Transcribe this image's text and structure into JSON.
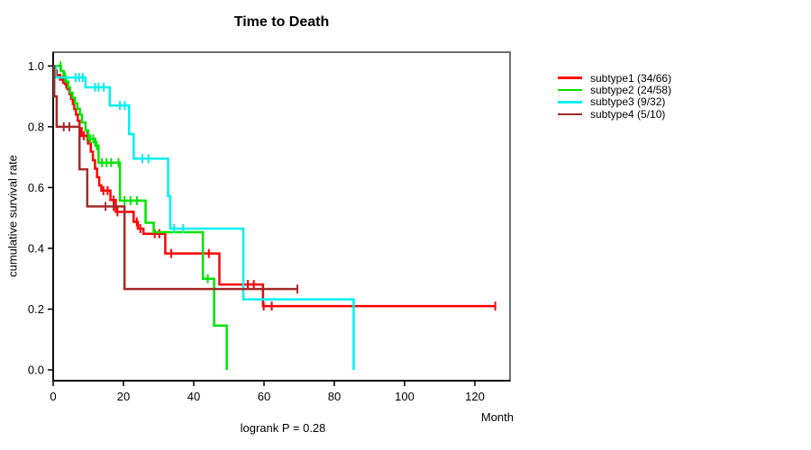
{
  "chart_data": {
    "type": "line",
    "subtype": "kaplan-meier-step-survival",
    "title": "Time to Death",
    "xlabel": "Month",
    "ylabel": "cumulative survival rate",
    "annotation": "logrank P = 0.28",
    "xlim": [
      0,
      130
    ],
    "ylim": [
      0.0,
      1.0
    ],
    "grid": false,
    "legend_position": "right-outside",
    "xticks": {
      "values": [
        0,
        20,
        40,
        60,
        80,
        100,
        120
      ],
      "labels": [
        "0",
        "20",
        "40",
        "60",
        "80",
        "100",
        "120"
      ]
    },
    "yticks": {
      "values": [
        0.0,
        0.2,
        0.4,
        0.6,
        0.8,
        1.0
      ],
      "labels": [
        "0.0",
        "0.2",
        "0.4",
        "0.6",
        "0.8",
        "1.0"
      ]
    },
    "series": [
      {
        "name": "subtype1",
        "label": "subtype1 (34/66)",
        "events": 34,
        "n": 66,
        "color": "#ff0000",
        "steps": [
          [
            0,
            1.0
          ],
          [
            0.5,
            0.985
          ],
          [
            1.0,
            0.97
          ],
          [
            2.0,
            0.955
          ],
          [
            3.4,
            0.94
          ],
          [
            4.1,
            0.924
          ],
          [
            4.6,
            0.908
          ],
          [
            5.1,
            0.892
          ],
          [
            5.6,
            0.875
          ],
          [
            6.0,
            0.858
          ],
          [
            6.5,
            0.84
          ],
          [
            7.0,
            0.82
          ],
          [
            7.5,
            0.795
          ],
          [
            8.1,
            0.77
          ],
          [
            9.9,
            0.745
          ],
          [
            10.7,
            0.718
          ],
          [
            11.3,
            0.69
          ],
          [
            11.9,
            0.662
          ],
          [
            12.5,
            0.634
          ],
          [
            13.1,
            0.607
          ],
          [
            13.7,
            0.59
          ],
          [
            16.3,
            0.559
          ],
          [
            17.8,
            0.52
          ],
          [
            22.9,
            0.487
          ],
          [
            24.1,
            0.465
          ],
          [
            25.7,
            0.448
          ],
          [
            31.9,
            0.383
          ],
          [
            47.3,
            0.281
          ],
          [
            59.7,
            0.21
          ]
        ],
        "end_time": 125.8,
        "censor_times": [
          2.8,
          3.7,
          8.7,
          9.7,
          14.3,
          15.5,
          17.2,
          18.3,
          23.8,
          24.8,
          28.9,
          30.2,
          33.6,
          44.3,
          55.4,
          57.1,
          59.9,
          62.2,
          125.8
        ]
      },
      {
        "name": "subtype2",
        "label": "subtype2 (24/58)",
        "events": 24,
        "n": 58,
        "color": "#00e300",
        "steps": [
          [
            0,
            1.0
          ],
          [
            2.2,
            0.983
          ],
          [
            3.0,
            0.966
          ],
          [
            3.6,
            0.948
          ],
          [
            4.3,
            0.93
          ],
          [
            4.8,
            0.912
          ],
          [
            5.5,
            0.895
          ],
          [
            6.2,
            0.877
          ],
          [
            6.9,
            0.859
          ],
          [
            7.6,
            0.84
          ],
          [
            8.2,
            0.814
          ],
          [
            9.2,
            0.788
          ],
          [
            10.0,
            0.76
          ],
          [
            12.0,
            0.738
          ],
          [
            12.9,
            0.682
          ],
          [
            19.0,
            0.557
          ],
          [
            26.3,
            0.484
          ],
          [
            28.6,
            0.453
          ],
          [
            42.6,
            0.3
          ],
          [
            45.8,
            0.146
          ],
          [
            49.4,
            0.0
          ]
        ],
        "end_time": 49.4,
        "censor_times": [
          2.1,
          3.3,
          10.5,
          11.4,
          12.4,
          13.9,
          15.2,
          16.5,
          18.6,
          20.3,
          22.0,
          23.8,
          44.0
        ]
      },
      {
        "name": "subtype3",
        "label": "subtype3 (9/32)",
        "events": 9,
        "n": 32,
        "color": "#00f0f0",
        "steps": [
          [
            0,
            1.0
          ],
          [
            0.7,
            0.962
          ],
          [
            9.2,
            0.93
          ],
          [
            16.1,
            0.87
          ],
          [
            21.6,
            0.776
          ],
          [
            22.9,
            0.695
          ],
          [
            32.7,
            0.572
          ],
          [
            33.3,
            0.465
          ],
          [
            54.1,
            0.232
          ],
          [
            85.5,
            0.0
          ]
        ],
        "end_time": 85.5,
        "censor_times": [
          6.4,
          7.4,
          8.4,
          11.9,
          12.9,
          14.4,
          19.0,
          20.4,
          25.4,
          27.1,
          34.4,
          37.0
        ]
      },
      {
        "name": "subtype4",
        "label": "subtype4 (5/10)",
        "events": 5,
        "n": 10,
        "color": "#a52a2a",
        "steps": [
          [
            0,
            1.0
          ],
          [
            0.3,
            0.9
          ],
          [
            1.0,
            0.8
          ],
          [
            7.5,
            0.66
          ],
          [
            9.7,
            0.538
          ],
          [
            20.3,
            0.266
          ]
        ],
        "end_time": 69.5,
        "censor_times": [
          3.0,
          4.6,
          14.9,
          17.2,
          69.5
        ]
      }
    ]
  }
}
